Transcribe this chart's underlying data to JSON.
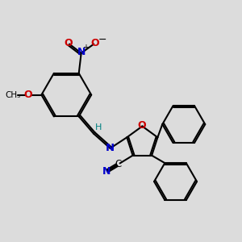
{
  "bg_color": "#dcdcdc",
  "bond_color": "#000000",
  "N_color": "#0000cc",
  "O_color": "#cc0000",
  "H_color": "#008080",
  "fig_size": [
    3.0,
    3.0
  ],
  "dpi": 100,
  "xlim": [
    0,
    10
  ],
  "ylim": [
    0,
    10
  ]
}
